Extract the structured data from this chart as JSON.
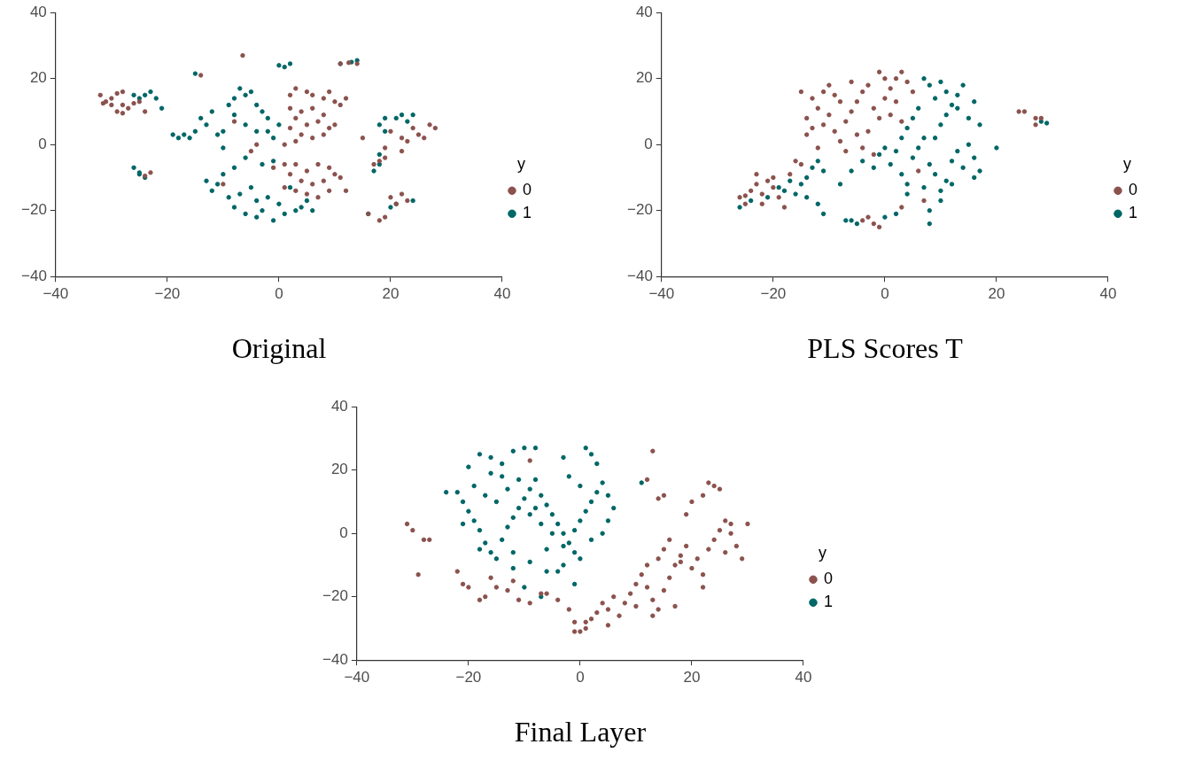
{
  "chart_data": [
    {
      "type": "scatter",
      "title": "Original",
      "legend_title": "y",
      "legend": "right",
      "marker": "circle",
      "xlim": [
        -40,
        40
      ],
      "ylim": [
        -40,
        40
      ],
      "xticks": [
        -40,
        -20,
        0,
        20,
        40
      ],
      "yticks": [
        -40,
        -20,
        0,
        20,
        40
      ],
      "series": [
        {
          "name": "0",
          "color": "#8b524d",
          "x": [
            -32,
            -31,
            -30,
            -29,
            -28,
            -30,
            -29,
            -28,
            -27,
            -26,
            -25,
            -28,
            -31.5,
            -24,
            -23,
            -24,
            -14,
            -6.5,
            11,
            12.5,
            14,
            2,
            3,
            5,
            6,
            8,
            9,
            10,
            11,
            12,
            2,
            4,
            6,
            8,
            3,
            5,
            7,
            9,
            2,
            4,
            6,
            8,
            10,
            3,
            1,
            -1,
            1,
            3,
            5,
            7,
            9,
            10,
            11,
            2,
            4,
            6,
            8,
            1,
            3,
            5,
            7,
            9,
            12,
            -10,
            -4,
            -5,
            -8,
            16,
            18,
            19,
            20,
            21,
            22,
            23,
            17,
            18,
            19,
            20,
            22,
            24,
            25,
            26,
            27,
            28,
            15,
            19,
            22,
            23
          ],
          "values": [
            15,
            13,
            14,
            15.5,
            16,
            12,
            10,
            9.5,
            11,
            12.5,
            13,
            12,
            12.5,
            10,
            -8.5,
            -9.5,
            21,
            27,
            24.5,
            24.8,
            24.5,
            15,
            17,
            16,
            15,
            14,
            16,
            13,
            12,
            14,
            11,
            10,
            11,
            9,
            8,
            6,
            7,
            5,
            5,
            3,
            2,
            3,
            6,
            1,
            0,
            -7,
            -6,
            -6,
            -8,
            -6,
            -7,
            -9,
            -10,
            -9,
            -11,
            -12,
            -11,
            -13,
            -14,
            -15,
            -16,
            -14,
            -14,
            -12,
            0,
            -2,
            7,
            -21,
            -23,
            -22,
            -16,
            -18,
            -15,
            -17,
            -6,
            -5,
            -4,
            4,
            2,
            5,
            3,
            2,
            6,
            5,
            2,
            -1,
            -2,
            1
          ]
        },
        {
          "name": "1",
          "color": "#006666",
          "x": [
            -26,
            -25,
            -24,
            -25,
            -25,
            -24,
            -23,
            -22,
            -21,
            -26,
            -19,
            -18,
            -17,
            -15,
            -16,
            -15,
            -14,
            -13,
            -12,
            -11,
            -10,
            -9,
            -8,
            -7,
            -6,
            -5,
            -4,
            -3,
            -2,
            -6,
            -4,
            -8,
            -2,
            -1,
            0,
            -10,
            -6,
            -3,
            -1,
            -13,
            -12,
            -11,
            -9,
            -8,
            -7,
            -5,
            -4,
            -3,
            -2,
            0,
            1,
            -1,
            -4,
            3,
            5,
            -6,
            -10,
            -8,
            0,
            1,
            2,
            13,
            14,
            11,
            18,
            19,
            21,
            22,
            23,
            24,
            19,
            18,
            18,
            17,
            16,
            20,
            21,
            24,
            2,
            4,
            6
          ],
          "values": [
            -7,
            -9,
            -10,
            -8.5,
            14,
            15,
            16,
            14,
            11,
            15,
            3,
            2,
            3,
            4,
            2,
            21.5,
            8,
            6,
            10,
            3,
            4,
            12,
            14,
            17,
            15,
            16,
            12,
            10,
            8,
            6,
            4,
            9,
            4,
            2,
            6,
            -1,
            -4,
            -6,
            -5,
            -11,
            -14,
            -12,
            -16,
            -19,
            -15,
            -13,
            -17,
            -20,
            -16,
            -18,
            -21,
            -23,
            -22,
            -20,
            -17,
            -21,
            -9,
            -7,
            24,
            23.5,
            24.5,
            25,
            25.5,
            24.5,
            6,
            8,
            8,
            9,
            7,
            9,
            4,
            -3,
            -6,
            -8,
            -21,
            -19,
            -18,
            -17,
            -13,
            -19,
            -20
          ]
        }
      ]
    },
    {
      "type": "scatter",
      "title": "PLS Scores T",
      "legend_title": "y",
      "legend": "right",
      "marker": "circle",
      "xlim": [
        -40,
        40
      ],
      "ylim": [
        -40,
        40
      ],
      "xticks": [
        -40,
        -20,
        0,
        20,
        40
      ],
      "yticks": [
        -40,
        -20,
        0,
        20,
        40
      ],
      "series": [
        {
          "name": "0",
          "color": "#8b524d",
          "x": [
            -26,
            -25,
            -24,
            -23,
            -22,
            -21,
            -20,
            -19,
            -18,
            -25,
            -22,
            -20,
            -23,
            -17,
            -15,
            -16,
            -14,
            -13,
            -14,
            -12,
            -13,
            -11,
            -10,
            -9,
            -8,
            -10,
            -11,
            -9,
            -8,
            -7,
            -6,
            -5,
            -4,
            -3,
            -6,
            -2,
            -1,
            0,
            1,
            2,
            3,
            4,
            5,
            -1,
            2,
            -3,
            -5,
            -4,
            -2,
            -7,
            0,
            1,
            3,
            -12,
            -15,
            -3,
            -2,
            -4,
            3,
            7,
            6,
            -1,
            24,
            25,
            27,
            28,
            27
          ],
          "values": [
            -16,
            -18,
            -14,
            -12,
            -15,
            -11,
            -13,
            -16,
            -19,
            -15.5,
            -18,
            -10,
            -9,
            -9,
            -6,
            -5,
            3,
            5,
            8,
            11,
            14,
            16,
            18,
            15,
            13,
            9,
            6,
            4,
            1,
            7,
            10,
            13,
            16,
            18,
            19,
            11,
            8,
            14,
            17,
            20,
            22,
            19,
            16,
            22,
            13,
            4,
            3,
            -1,
            -3,
            -2,
            20,
            9,
            7,
            -1,
            16,
            -22,
            -24,
            -23,
            -19,
            -17,
            -8,
            -25,
            10,
            10,
            8,
            8,
            6
          ]
        },
        {
          "name": "1",
          "color": "#006666",
          "x": [
            -26,
            -24,
            -21,
            -19,
            -17,
            -15,
            -14,
            -16,
            -18,
            -13,
            -12,
            -11,
            -14,
            -12,
            -11,
            -7,
            -6,
            -5,
            0,
            2,
            8,
            -8,
            -6,
            -4,
            -2,
            -1,
            0,
            1,
            3,
            4,
            5,
            6,
            7,
            8,
            9,
            10,
            11,
            12,
            13,
            14,
            15,
            16,
            17,
            10,
            8,
            4,
            9,
            10,
            11,
            12,
            13,
            14,
            9,
            8,
            7,
            10,
            11,
            13,
            15,
            16,
            17,
            6,
            5,
            4,
            3,
            2,
            20,
            28,
            29,
            16,
            12,
            7
          ],
          "values": [
            -19,
            -17,
            -16,
            -13,
            -11,
            -12,
            -10,
            -15,
            -14,
            -7,
            -5,
            -8,
            -16,
            -18,
            -21,
            -23,
            -23,
            -24,
            -22,
            -21,
            -24,
            -12,
            -8,
            -5,
            -7,
            -3,
            -1,
            -6,
            -9,
            -12,
            -4,
            -1,
            2,
            -6,
            -9,
            -14,
            -11,
            -5,
            -2,
            -7,
            0,
            -4,
            -8,
            -17,
            -20,
            -15,
            2,
            6,
            9,
            12,
            15,
            18,
            14,
            18,
            20,
            19,
            16,
            11,
            8,
            13,
            6,
            11,
            8,
            5,
            2,
            -2,
            -1,
            7,
            6.5,
            -10,
            -12,
            -13
          ]
        }
      ]
    },
    {
      "type": "scatter",
      "title": "Final Layer",
      "legend_title": "y",
      "legend": "right",
      "marker": "circle",
      "xlim": [
        -40,
        40
      ],
      "ylim": [
        -40,
        40
      ],
      "xticks": [
        -40,
        -20,
        0,
        20,
        40
      ],
      "yticks": [
        -40,
        -20,
        0,
        20,
        40
      ],
      "series": [
        {
          "name": "0",
          "color": "#8b524d",
          "x": [
            -31,
            -30,
            -28,
            -27,
            -29,
            -22,
            -21,
            -20,
            -18,
            -17,
            -16,
            -15,
            -13,
            -12,
            -11,
            -9,
            -7,
            -6,
            -4,
            -2,
            -1,
            0,
            1,
            2,
            3,
            4,
            5,
            6,
            7,
            8,
            9,
            10,
            11,
            12,
            13,
            14,
            15,
            16,
            17,
            18,
            19,
            20,
            21,
            22,
            23,
            24,
            25,
            26,
            27,
            28,
            29,
            30,
            13,
            17,
            18,
            15,
            16,
            14,
            12,
            22,
            24,
            25,
            20,
            19,
            14,
            15,
            12,
            13,
            -9,
            1,
            -1,
            5,
            10,
            22,
            26,
            27,
            23
          ],
          "values": [
            3,
            1,
            -2,
            -2,
            -13,
            -12,
            -16,
            -17,
            -21,
            -20,
            -14,
            -17,
            -18,
            -15,
            -21,
            -22,
            -19,
            -19,
            -21,
            -24,
            -28,
            -31,
            -30,
            -27,
            -25,
            -22,
            -24,
            -20,
            -26,
            -22,
            -19,
            -16,
            -13,
            -17,
            -21,
            -24,
            -18,
            -14,
            -10,
            -7,
            -4,
            -11,
            -8,
            -13,
            -5,
            -2,
            1,
            4,
            3,
            -4,
            -8,
            3,
            -26,
            -23,
            -9,
            -5,
            -2,
            -8,
            -10,
            12,
            15,
            14,
            10,
            6,
            11,
            12,
            17,
            26,
            23,
            -28,
            -31,
            -29,
            -23,
            -17,
            -6,
            0,
            16
          ]
        },
        {
          "name": "1",
          "color": "#006666",
          "x": [
            -22,
            -21,
            -20,
            -19,
            -21,
            -18,
            -17,
            -16,
            -15,
            -14,
            -13,
            -12,
            -11,
            -10,
            -9,
            -8,
            -7,
            -6,
            -5,
            -4,
            -3,
            -2,
            -1,
            0,
            1,
            2,
            3,
            4,
            5,
            6,
            5,
            4,
            2,
            0,
            -3,
            -6,
            -9,
            -12,
            -18,
            -20,
            -18,
            -16,
            -14,
            -12,
            -10,
            -8,
            -16,
            -14,
            -19,
            -17,
            -15,
            -13,
            -11,
            -9,
            -7,
            -5,
            -3,
            -1,
            1,
            2,
            3,
            -3,
            0,
            -2,
            -4,
            -7,
            -10,
            -1,
            -8,
            -6,
            -12,
            11,
            -24
          ],
          "values": [
            13,
            10,
            7,
            4,
            3,
            1,
            -3,
            -6,
            -8,
            -2,
            2,
            5,
            8,
            11,
            14,
            17,
            12,
            9,
            6,
            3,
            0,
            -3,
            -6,
            4,
            7,
            10,
            13,
            16,
            12,
            8,
            4,
            0,
            -2,
            -8,
            -10,
            -12,
            -9,
            -11,
            -5,
            21,
            25,
            24,
            22,
            26,
            27,
            27,
            19,
            18,
            15,
            12,
            10,
            14,
            17,
            6,
            3,
            0,
            -4,
            1,
            27,
            25,
            22,
            24,
            15,
            18,
            -12,
            -20,
            -17,
            -16,
            8,
            -5,
            -6,
            16,
            13
          ]
        }
      ]
    }
  ]
}
